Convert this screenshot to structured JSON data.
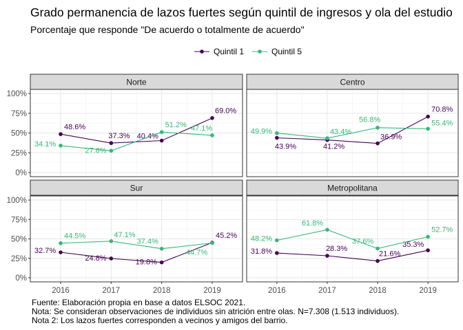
{
  "chart_data": {
    "type": "line",
    "title": "Grado permanencia de lazos fuertes  según quintil de ingresos y ola del estudio",
    "subtitle": "Porcentaje que responde \"De acuerdo o totalmente de acuerdo\"",
    "x": [
      "2016",
      "2017",
      "2018",
      "2019"
    ],
    "y_ticks": [
      "0%",
      "25%",
      "50%",
      "75%",
      "100%"
    ],
    "ylim": [
      0,
      100
    ],
    "legend_position": "top",
    "grid": true,
    "legend": [
      {
        "name": "Quintil 1",
        "color": "#440154"
      },
      {
        "name": "Quintil 5",
        "color": "#35B779"
      }
    ],
    "panels": [
      {
        "name": "Norte",
        "series": [
          {
            "name": "Quintil 1",
            "values": [
              48.6,
              37.3,
              40.4,
              69.0
            ],
            "labels": [
              "48.6%",
              "37.3%",
              "40.4%",
              "69.0%"
            ]
          },
          {
            "name": "Quintil 5",
            "values": [
              34.1,
              27.6,
              51.2,
              47.1
            ],
            "labels": [
              "34.1%",
              "27.6%",
              "51.2%",
              "47.1%"
            ]
          }
        ]
      },
      {
        "name": "Centro",
        "series": [
          {
            "name": "Quintil 1",
            "values": [
              43.9,
              41.2,
              36.9,
              70.8
            ],
            "labels": [
              "43.9%",
              "41.2%",
              "36.9%",
              "70.8%"
            ]
          },
          {
            "name": "Quintil 5",
            "values": [
              49.9,
              43.4,
              56.8,
              55.4
            ],
            "labels": [
              "49.9%",
              "43.4%",
              "56.8%",
              "55.4%"
            ]
          }
        ]
      },
      {
        "name": "Sur",
        "series": [
          {
            "name": "Quintil 1",
            "values": [
              32.7,
              24.8,
              19.8,
              45.2
            ],
            "labels": [
              "32.7%",
              "24.8%",
              "19.8%",
              "45.2%"
            ]
          },
          {
            "name": "Quintil 5",
            "values": [
              44.5,
              47.1,
              37.4,
              44.7
            ],
            "labels": [
              "44.5%",
              "47.1%",
              "37.4%",
              "44.7%"
            ]
          }
        ]
      },
      {
        "name": "Metropolitana",
        "series": [
          {
            "name": "Quintil 1",
            "values": [
              31.8,
              28.3,
              21.6,
              35.3
            ],
            "labels": [
              "31.8%",
              "28.3%",
              "21.6%",
              "35.3%"
            ]
          },
          {
            "name": "Quintil 5",
            "values": [
              48.2,
              61.8,
              37.6,
              52.7
            ],
            "labels": [
              "48.2%",
              "61.8%",
              "37.6%",
              "52.7%"
            ]
          }
        ]
      }
    ]
  },
  "caption": [
    "Fuente: Elaboración propia en base a datos ELSOC 2021.",
    "Nota: Se consideran observaciones de individuos sin atrición entre olas. N=7.308 (1.513 individuos).",
    "Nota 2: Los lazos fuertes corresponden a vecinos y amigos del barrio."
  ]
}
